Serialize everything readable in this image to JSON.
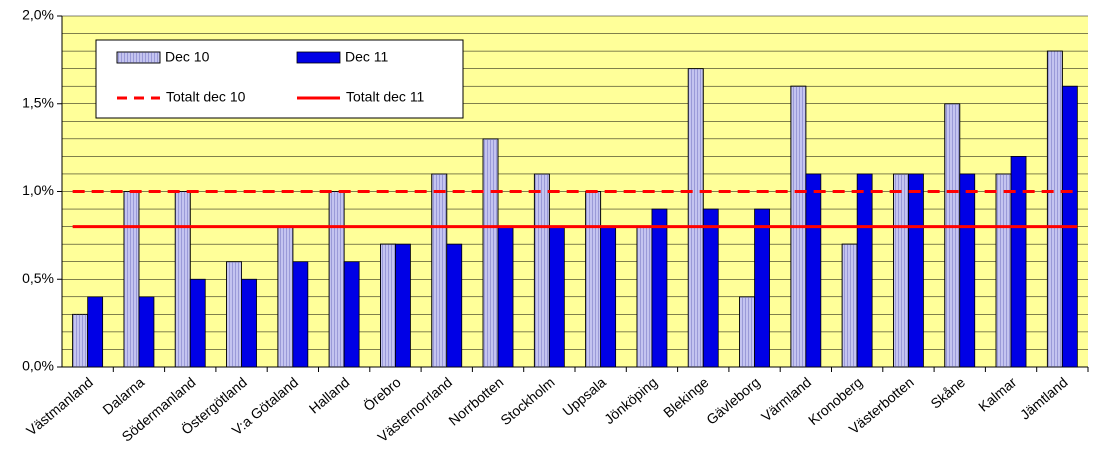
{
  "chart_data": {
    "type": "bar",
    "categories": [
      "Västmanland",
      "Dalarna",
      "Södermanland",
      "Östergötland",
      "V:a Götaland",
      "Halland",
      "Örebro",
      "Västernorrland",
      "Norrbotten",
      "Stockholm",
      "Uppsala",
      "Jönköping",
      "Blekinge",
      "Gävleborg",
      "Värmland",
      "Kronoberg",
      "Västerbotten",
      "Skåne",
      "Kalmar",
      "Jämtland"
    ],
    "series": [
      {
        "name": "Dec 10",
        "color": "#c4c4f0",
        "values": [
          0.3,
          1.0,
          1.0,
          0.6,
          0.8,
          1.0,
          0.7,
          1.1,
          1.3,
          1.1,
          1.0,
          0.8,
          1.7,
          0.4,
          1.6,
          0.7,
          1.1,
          1.5,
          1.1,
          1.8
        ]
      },
      {
        "name": "Dec 11",
        "color": "#0000e6",
        "values": [
          0.4,
          0.4,
          0.5,
          0.5,
          0.6,
          0.6,
          0.7,
          0.7,
          0.8,
          0.8,
          0.8,
          0.9,
          0.9,
          0.9,
          1.1,
          1.1,
          1.1,
          1.1,
          1.2,
          1.6
        ]
      }
    ],
    "lines": [
      {
        "name": "Totalt dec 10",
        "color": "#ff0000",
        "value": 1.0,
        "style": "dashed"
      },
      {
        "name": "Totalt dec 11",
        "color": "#ff0000",
        "value": 0.8,
        "style": "solid"
      }
    ],
    "ylim": [
      0,
      2.0
    ],
    "yticks": [
      {
        "value": 0,
        "label": "0,0%"
      },
      {
        "value": 0.5,
        "label": "0,5%"
      },
      {
        "value": 1.0,
        "label": "1,0%"
      },
      {
        "value": 1.5,
        "label": "1,5%"
      },
      {
        "value": 2.0,
        "label": "2,0%"
      }
    ],
    "ygrid": [
      0.1,
      0.2,
      0.3,
      0.4,
      0.5,
      0.6,
      0.7,
      0.8,
      0.9,
      1.0,
      1.1,
      1.2,
      1.3,
      1.4,
      1.5,
      1.6,
      1.7,
      1.8,
      1.9,
      2.0
    ],
    "plot_background": "#ffff99"
  }
}
